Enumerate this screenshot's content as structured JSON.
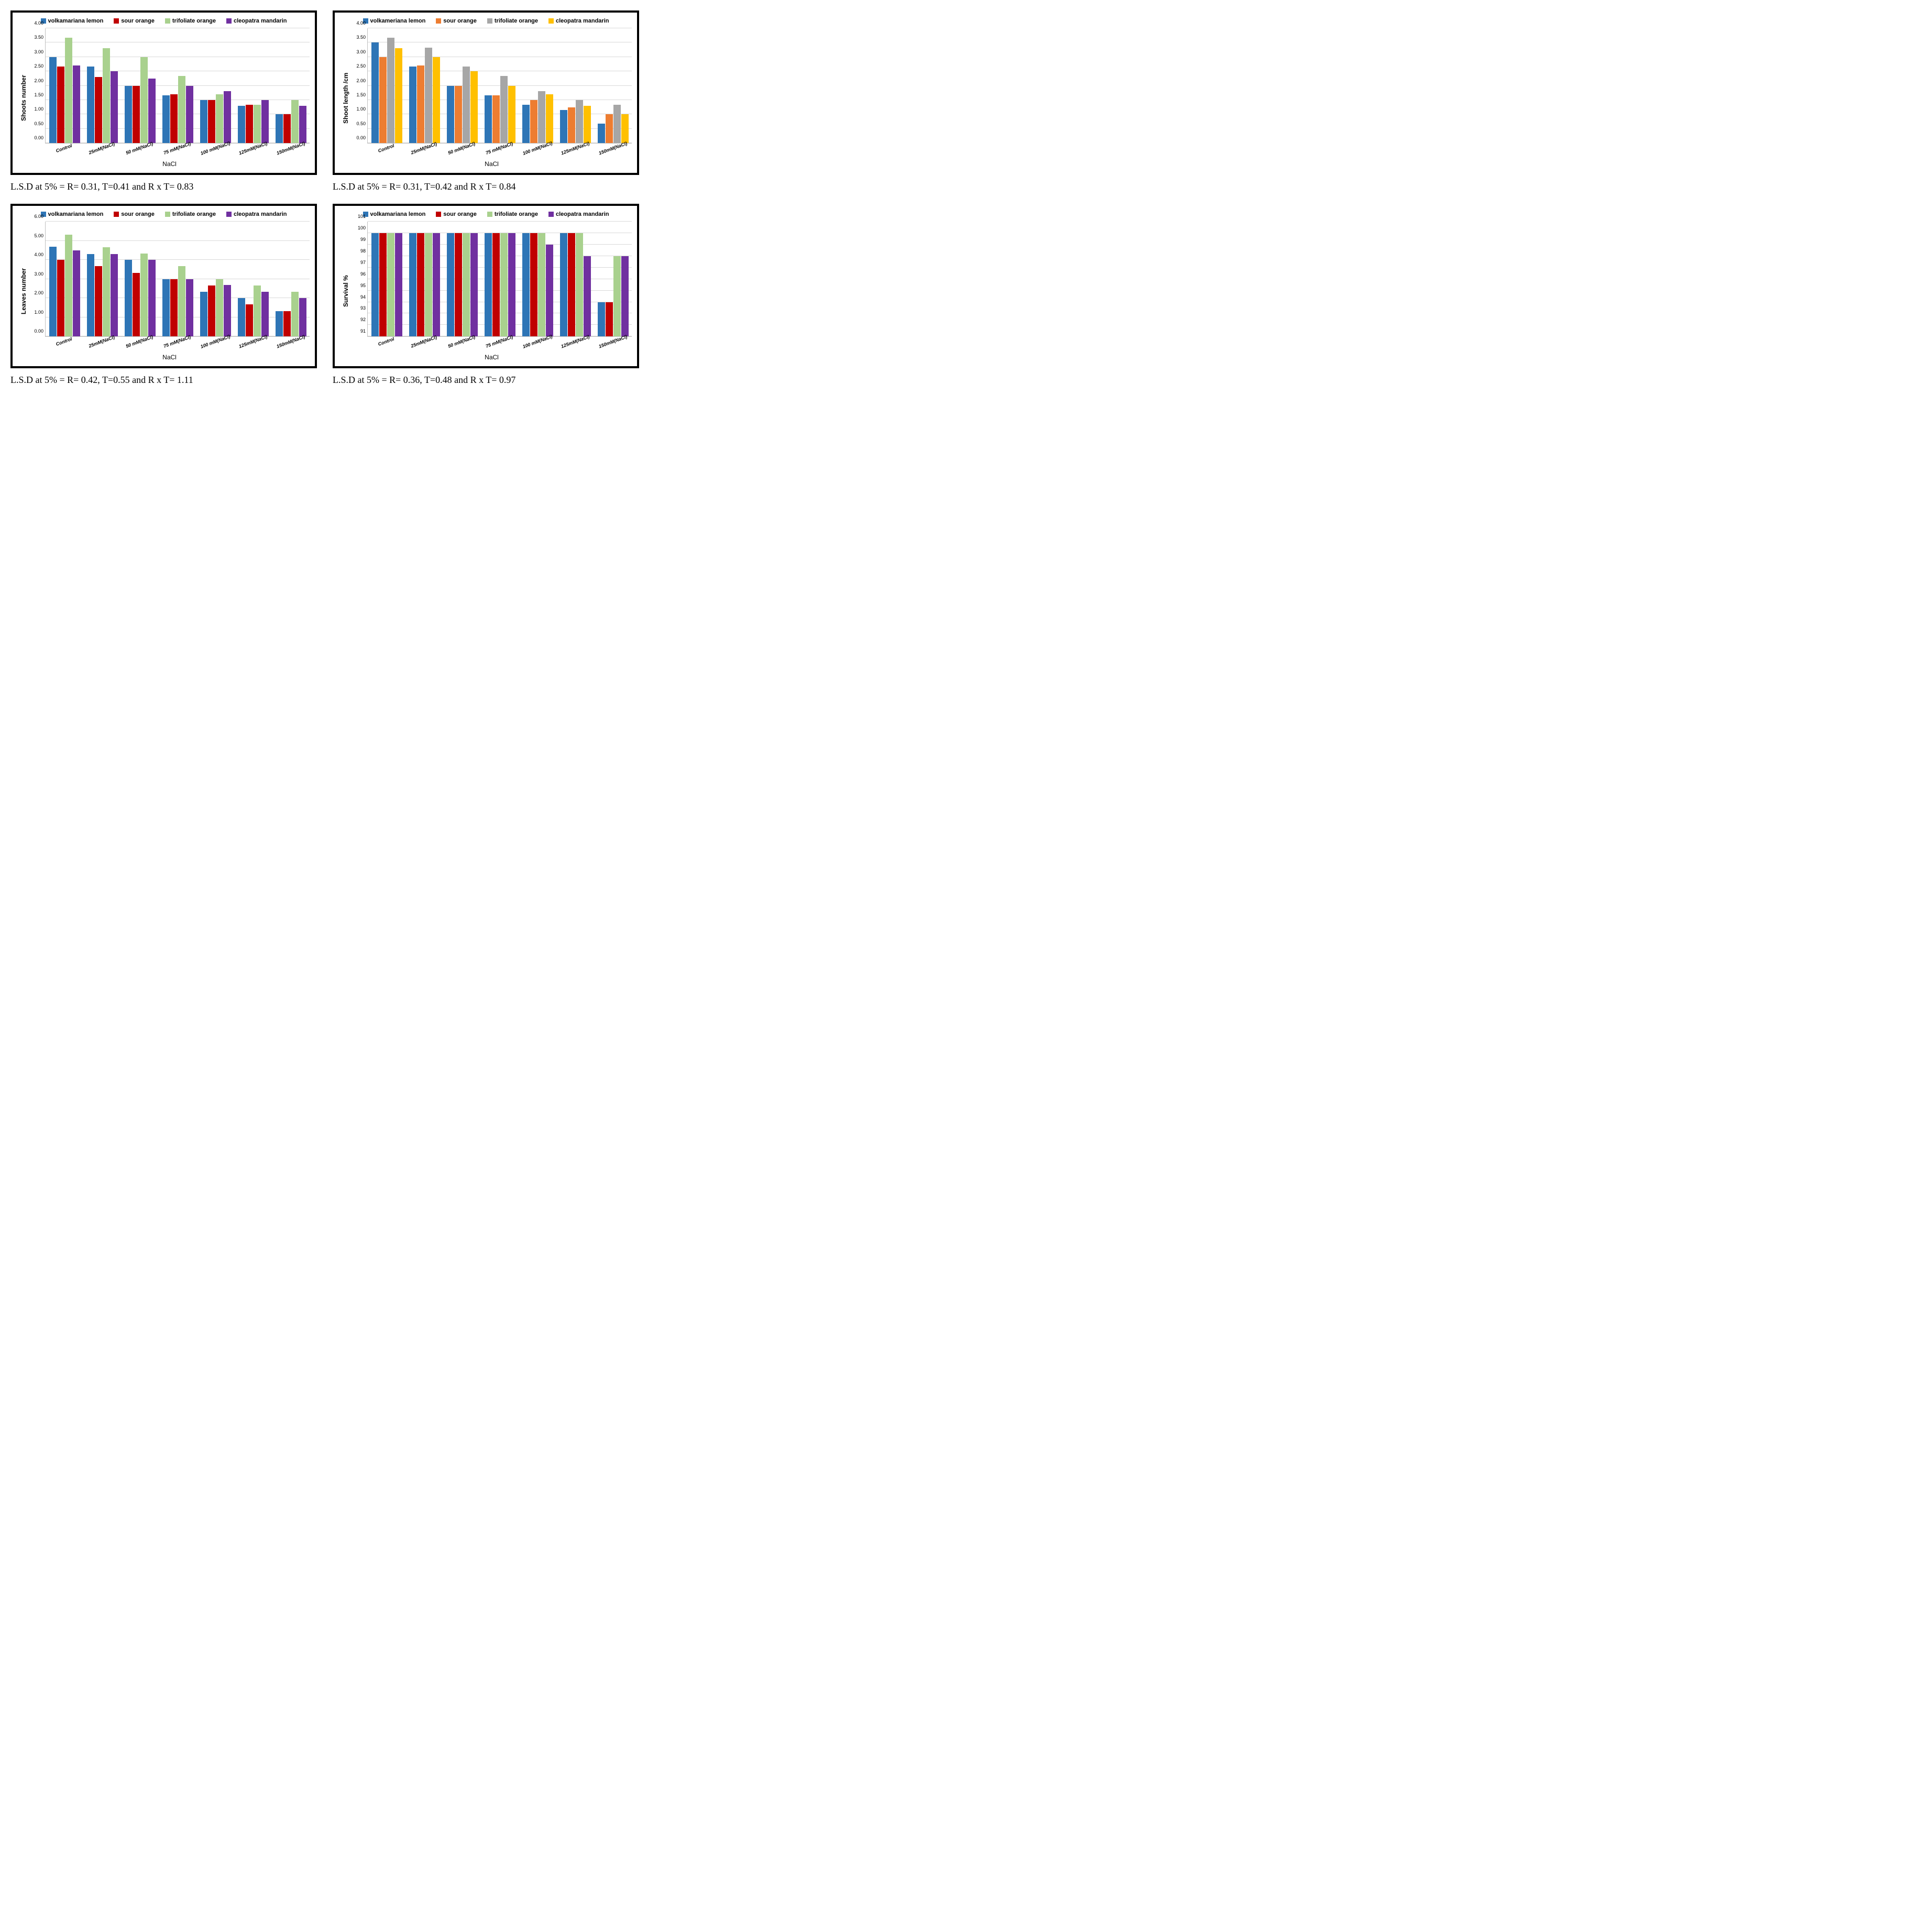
{
  "colors": {
    "series1_blue": "#2e75b6",
    "series2_orange": "#c00000",
    "series2_alt_orange": "#ed7d31",
    "series3_green": "#a9d18e",
    "series3_alt_gray": "#a6a6a6",
    "series4_purple": "#7030a0",
    "series4_alt_yellow": "#ffc000",
    "grid": "#d9d9d9",
    "axis": "#bfbfbf",
    "frame": "#000000",
    "bg": "#ffffff"
  },
  "series_names": {
    "s1": "volkamariana lemon",
    "s1_alt": "volkameriana lemon",
    "s2": "sour orange",
    "s3": "trifoliate orange",
    "s4": "cleopatra mandarin"
  },
  "categories": [
    "Control",
    "25mM(NaCl)",
    "50 mM(NaCl)",
    "75 mM(NaCl)",
    "100 mM(NaCl)",
    "125mM(NaCl)",
    "150mM(NaCl)"
  ],
  "x_axis_title": "NaCl",
  "charts": [
    {
      "id": "shoots_number",
      "ylabel": "Shoots number",
      "ymin": 0,
      "ymax": 4,
      "ystep": 0.5,
      "decimals": 2,
      "legend_colors": [
        "#2e75b6",
        "#c00000",
        "#a9d18e",
        "#7030a0"
      ],
      "legend_labels": [
        "volkamariana lemon",
        "sour orange",
        "trifoliate orange",
        "cleopatra mandarin"
      ],
      "data": {
        "s1": [
          3.0,
          2.67,
          2.0,
          1.67,
          1.5,
          1.3,
          1.0
        ],
        "s2": [
          2.67,
          2.3,
          2.0,
          1.7,
          1.5,
          1.33,
          1.0
        ],
        "s3": [
          3.67,
          3.3,
          3.0,
          2.33,
          1.7,
          1.33,
          1.5
        ],
        "s4": [
          2.7,
          2.5,
          2.25,
          2.0,
          1.8,
          1.5,
          1.3
        ]
      },
      "caption": "L.S.D at 5% = R= 0.31, T=0.41 and R x T= 0.83"
    },
    {
      "id": "shoot_length",
      "ylabel": "Shoot length /cm",
      "ymin": 0,
      "ymax": 4,
      "ystep": 0.5,
      "decimals": 2,
      "legend_colors": [
        "#2e75b6",
        "#ed7d31",
        "#a6a6a6",
        "#ffc000"
      ],
      "legend_labels": [
        "volkameriana lemon",
        "sour orange",
        "trifoliate orange",
        "cleopatra mandarin"
      ],
      "data": {
        "s1": [
          3.5,
          2.67,
          2.0,
          1.67,
          1.33,
          1.15,
          0.67
        ],
        "s2": [
          3.0,
          2.7,
          2.0,
          1.67,
          1.5,
          1.25,
          1.0
        ],
        "s3": [
          3.67,
          3.33,
          2.67,
          2.33,
          1.8,
          1.5,
          1.33
        ],
        "s4": [
          3.3,
          3.0,
          2.5,
          2.0,
          1.7,
          1.3,
          1.0
        ]
      },
      "caption": "L.S.D at 5% = R= 0.31, T=0.42 and R x T= 0.84"
    },
    {
      "id": "leaves_number",
      "ylabel": "Leaves number",
      "ymin": 0,
      "ymax": 6,
      "ystep": 1,
      "decimals": 2,
      "legend_colors": [
        "#2e75b6",
        "#c00000",
        "#a9d18e",
        "#7030a0"
      ],
      "legend_labels": [
        "volkamariana lemon",
        "sour orange",
        "trifoliate orange",
        "cleopatra mandarin"
      ],
      "data": {
        "s1": [
          4.7,
          4.3,
          4.0,
          3.0,
          2.33,
          2.0,
          1.33
        ],
        "s2": [
          4.0,
          3.67,
          3.33,
          3.0,
          2.67,
          1.67,
          1.33
        ],
        "s3": [
          5.33,
          4.67,
          4.33,
          3.67,
          3.0,
          2.67,
          2.33
        ],
        "s4": [
          4.5,
          4.3,
          4.0,
          3.0,
          2.7,
          2.33,
          2.0
        ]
      },
      "caption": "L.S.D at 5% = R= 0.42, T=0.55 and R x T= 1.11"
    },
    {
      "id": "survival",
      "ylabel": "Survival %",
      "ymin": 91,
      "ymax": 101,
      "ystep": 1,
      "decimals": 0,
      "legend_colors": [
        "#2e75b6",
        "#c00000",
        "#a9d18e",
        "#7030a0"
      ],
      "legend_labels": [
        "volkamariana lemon",
        "sour orange",
        "trifoliate orange",
        "cleopatra mandarin"
      ],
      "data": {
        "s1": [
          100,
          100,
          100,
          100,
          100,
          100,
          94
        ],
        "s2": [
          100,
          100,
          100,
          100,
          100,
          100,
          94
        ],
        "s3": [
          100,
          100,
          100,
          100,
          100,
          100,
          98
        ],
        "s4": [
          100,
          100,
          100,
          100,
          99,
          98,
          98
        ]
      },
      "caption": "L.S.D at 5% = R= 0.36, T=0.48 and R x T= 0.97"
    }
  ]
}
